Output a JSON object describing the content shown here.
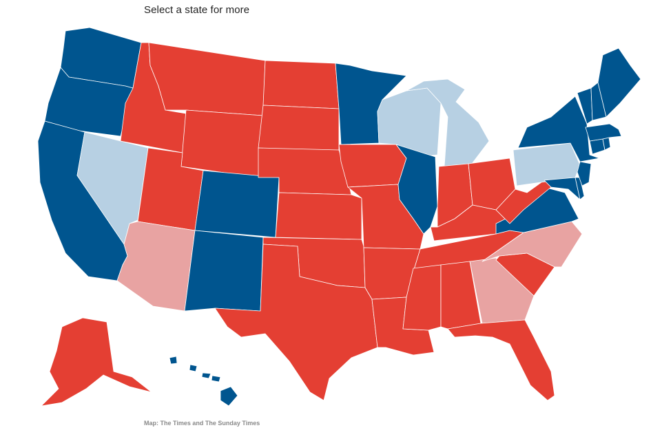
{
  "header": {
    "prompt": "Select a state for more"
  },
  "footer": {
    "credit": "Map: The Times and The Sunday Times"
  },
  "legend_colors": {
    "solid_dem": "#00558f",
    "lean_dem": "#b7d0e3",
    "solid_rep": "#e43f33",
    "lean_rep": "#e8a3a2"
  },
  "states": [
    {
      "id": "WA",
      "category": "solid_dem"
    },
    {
      "id": "OR",
      "category": "solid_dem"
    },
    {
      "id": "CA",
      "category": "solid_dem"
    },
    {
      "id": "NV",
      "category": "lean_dem"
    },
    {
      "id": "ID",
      "category": "solid_rep"
    },
    {
      "id": "MT",
      "category": "solid_rep"
    },
    {
      "id": "WY",
      "category": "solid_rep"
    },
    {
      "id": "UT",
      "category": "solid_rep"
    },
    {
      "id": "AZ",
      "category": "lean_rep"
    },
    {
      "id": "CO",
      "category": "solid_dem"
    },
    {
      "id": "NM",
      "category": "solid_dem"
    },
    {
      "id": "ND",
      "category": "solid_rep"
    },
    {
      "id": "SD",
      "category": "solid_rep"
    },
    {
      "id": "NE",
      "category": "solid_rep"
    },
    {
      "id": "KS",
      "category": "solid_rep"
    },
    {
      "id": "OK",
      "category": "solid_rep"
    },
    {
      "id": "TX",
      "category": "solid_rep"
    },
    {
      "id": "MN",
      "category": "solid_dem"
    },
    {
      "id": "IA",
      "category": "solid_rep"
    },
    {
      "id": "MO",
      "category": "solid_rep"
    },
    {
      "id": "AR",
      "category": "solid_rep"
    },
    {
      "id": "LA",
      "category": "solid_rep"
    },
    {
      "id": "WI",
      "category": "lean_dem"
    },
    {
      "id": "IL",
      "category": "solid_dem"
    },
    {
      "id": "MI",
      "category": "lean_dem"
    },
    {
      "id": "IN",
      "category": "solid_rep"
    },
    {
      "id": "OH",
      "category": "solid_rep"
    },
    {
      "id": "KY",
      "category": "solid_rep"
    },
    {
      "id": "TN",
      "category": "solid_rep"
    },
    {
      "id": "MS",
      "category": "solid_rep"
    },
    {
      "id": "AL",
      "category": "solid_rep"
    },
    {
      "id": "GA",
      "category": "lean_rep"
    },
    {
      "id": "FL",
      "category": "solid_rep"
    },
    {
      "id": "SC",
      "category": "solid_rep"
    },
    {
      "id": "NC",
      "category": "lean_rep"
    },
    {
      "id": "VA",
      "category": "solid_dem"
    },
    {
      "id": "WV",
      "category": "solid_rep"
    },
    {
      "id": "PA",
      "category": "lean_dem"
    },
    {
      "id": "NY",
      "category": "solid_dem"
    },
    {
      "id": "NJ",
      "category": "solid_dem"
    },
    {
      "id": "DE",
      "category": "solid_dem"
    },
    {
      "id": "MD",
      "category": "solid_dem"
    },
    {
      "id": "CT",
      "category": "solid_dem"
    },
    {
      "id": "RI",
      "category": "solid_dem"
    },
    {
      "id": "MA",
      "category": "solid_dem"
    },
    {
      "id": "VT",
      "category": "solid_dem"
    },
    {
      "id": "NH",
      "category": "solid_dem"
    },
    {
      "id": "ME",
      "category": "solid_dem"
    },
    {
      "id": "AK",
      "category": "solid_rep"
    },
    {
      "id": "HI",
      "category": "solid_dem"
    }
  ]
}
